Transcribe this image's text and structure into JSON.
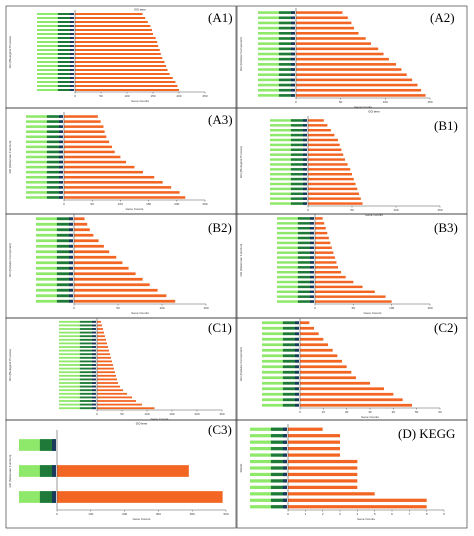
{
  "figure": {
    "panel_labels": [
      "(A1)",
      "(A2)",
      "(A3)",
      "(B1)",
      "(B2)",
      "(B3)",
      "(C1)",
      "(C2)",
      "(C3)",
      "(D) KEGG"
    ],
    "colors": {
      "bar": "#f26522",
      "label_green_light": "#8ee86a",
      "label_green_dark": "#1f7a3a",
      "label_navy": "#1c3a5e",
      "axis": "#555555",
      "frame": "#222222"
    }
  },
  "chart_data": [
    {
      "id": "A1",
      "type": "bar",
      "orientation": "horizontal",
      "title": "GO term",
      "xlabel": "Gene Counts",
      "ylabel": "GO (Biological Process)",
      "xlim": [
        0,
        250
      ],
      "xticks": [
        "0",
        "50",
        "100",
        "150",
        "200",
        "250"
      ],
      "values": [
        130,
        135,
        140,
        145,
        148,
        150,
        155,
        158,
        160,
        163,
        165,
        168,
        172,
        175,
        178,
        182,
        188,
        193,
        197,
        200
      ]
    },
    {
      "id": "A2",
      "type": "bar",
      "orientation": "horizontal",
      "title": "",
      "xlabel": "Gene Counts",
      "ylabel": "GO (Cellular Component)",
      "xlim": [
        0,
        150
      ],
      "xticks": [
        "0",
        "50",
        "100",
        "150"
      ],
      "values": [
        52,
        58,
        62,
        65,
        70,
        78,
        84,
        92,
        98,
        104,
        112,
        118,
        124,
        130,
        136,
        140,
        145
      ]
    },
    {
      "id": "A3",
      "type": "bar",
      "orientation": "horizontal",
      "title": "",
      "xlabel": "Gene Counts",
      "ylabel": "GO (Molecular Function)",
      "xlim": [
        0,
        250
      ],
      "xticks": [
        "0",
        "50",
        "100",
        "150",
        "200",
        "250"
      ],
      "values": [
        60,
        65,
        70,
        72,
        75,
        80,
        85,
        90,
        100,
        110,
        125,
        140,
        160,
        175,
        190,
        205,
        215
      ]
    },
    {
      "id": "B1",
      "type": "bar",
      "orientation": "horizontal",
      "title": "GO term",
      "xlabel": "Gene Counts",
      "ylabel": "GO (Biological Process)",
      "xlim": [
        0,
        150
      ],
      "xticks": [
        "0",
        "50",
        "100",
        "150"
      ],
      "values": [
        18,
        22,
        26,
        30,
        34,
        36,
        38,
        40,
        42,
        45,
        48,
        50,
        52,
        54,
        56,
        58,
        60,
        62
      ]
    },
    {
      "id": "B2",
      "type": "bar",
      "orientation": "horizontal",
      "title": "",
      "xlabel": "Gene Counts",
      "ylabel": "GO (Cellular Component)",
      "xlim": [
        0,
        150
      ],
      "xticks": [
        "0",
        "50",
        "100",
        "150"
      ],
      "values": [
        12,
        15,
        18,
        22,
        28,
        34,
        40,
        48,
        55,
        62,
        70,
        78,
        86,
        95,
        105,
        115
      ]
    },
    {
      "id": "B3",
      "type": "bar",
      "orientation": "horizontal",
      "title": "",
      "xlabel": "Gene Counts",
      "ylabel": "GO (Molecular Function)",
      "xlim": [
        0,
        150
      ],
      "xticks": [
        "0",
        "50",
        "100",
        "150"
      ],
      "values": [
        10,
        12,
        14,
        16,
        18,
        20,
        22,
        24,
        26,
        28,
        30,
        34,
        40,
        50,
        62,
        78,
        92,
        100
      ]
    },
    {
      "id": "C1",
      "type": "bar",
      "orientation": "horizontal",
      "title": "",
      "xlabel": "Gene Counts",
      "ylabel": "GO (Biological Process)",
      "xlim": [
        0,
        250
      ],
      "xticks": [
        "0",
        "50",
        "100",
        "150",
        "200",
        "250"
      ],
      "values": [
        8,
        10,
        12,
        14,
        16,
        18,
        20,
        22,
        24,
        26,
        28,
        30,
        32,
        34,
        36,
        38,
        40,
        42,
        46,
        52,
        60,
        70,
        78,
        90,
        115
      ]
    },
    {
      "id": "C2",
      "type": "bar",
      "orientation": "horizontal",
      "title": "",
      "xlabel": "Gene Counts",
      "ylabel": "GO (Cellular Component)",
      "xlim": [
        0,
        60
      ],
      "xticks": [
        "0",
        "10",
        "20",
        "30",
        "40",
        "50",
        "60"
      ],
      "values": [
        4,
        6,
        8,
        10,
        12,
        14,
        16,
        18,
        20,
        22,
        24,
        30,
        36,
        40,
        44,
        48
      ]
    },
    {
      "id": "C3",
      "type": "bar",
      "orientation": "horizontal",
      "title": "GO term",
      "xlabel": "Gene Counts",
      "ylabel": "GO (Molecular Function)",
      "xlim": [
        0,
        500
      ],
      "xticks": [
        "0",
        "100",
        "200",
        "300",
        "400",
        "500"
      ],
      "values": [
        0,
        390,
        490
      ]
    },
    {
      "id": "D",
      "type": "bar",
      "orientation": "horizontal",
      "title": "",
      "xlabel": "Gene Counts",
      "ylabel": "KEGG",
      "xlim": [
        0,
        9
      ],
      "xticks": [
        "0",
        "1",
        "2",
        "3",
        "4",
        "5",
        "6",
        "7",
        "8",
        "9"
      ],
      "values": [
        2,
        3,
        3,
        3,
        3,
        4,
        4,
        4,
        4,
        4,
        5,
        8,
        8
      ]
    }
  ]
}
